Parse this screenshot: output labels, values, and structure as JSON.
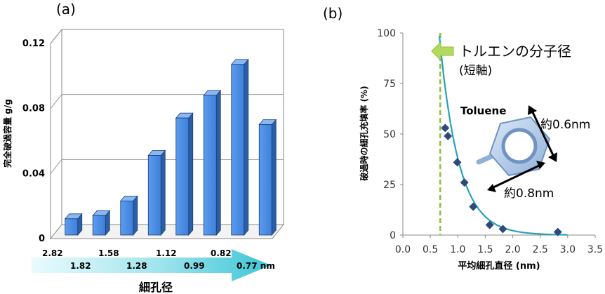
{
  "chart_data": [
    {
      "panel_label": "(a)",
      "type": "bar",
      "ylabel": "完全破過容量 g/g",
      "ylim": [
        0,
        0.12
      ],
      "yticks": [
        "0",
        "0.04",
        "0.08",
        "0.12"
      ],
      "categories": [
        "2.82",
        "1.82",
        "1.58",
        "1.28",
        "1.12",
        "0.99",
        "0.82",
        "0.77 nm"
      ],
      "values": [
        0.01,
        0.012,
        0.021,
        0.049,
        0.072,
        0.086,
        0.105,
        0.068
      ],
      "xlabel": "細孔径",
      "bar_color": "#4f8fe6"
    },
    {
      "panel_label": "(b)",
      "type": "scatter",
      "xlabel": "平均細孔直径 (nm)",
      "ylabel": "破過時の細孔充填率 (%)",
      "xlim": [
        0,
        3.5
      ],
      "ylim": [
        0,
        100
      ],
      "xticks": [
        "0.0",
        "0.5",
        "1.0",
        "1.5",
        "2.0",
        "2.5",
        "3.0",
        "3.5"
      ],
      "yticks": [
        "0",
        "25",
        "50",
        "75",
        "100"
      ],
      "points": [
        {
          "x": 0.77,
          "y": 53
        },
        {
          "x": 0.82,
          "y": 49
        },
        {
          "x": 0.99,
          "y": 36
        },
        {
          "x": 1.12,
          "y": 26
        },
        {
          "x": 1.28,
          "y": 14
        },
        {
          "x": 1.58,
          "y": 5
        },
        {
          "x": 1.82,
          "y": 3
        },
        {
          "x": 2.82,
          "y": 1.5
        }
      ],
      "reference_line_x": 0.68,
      "annotation_line1": "トルエンの分子径",
      "annotation_line2": "(短軸)",
      "molecule_name": "Toluene",
      "dim1": "約0.6nm",
      "dim2": "約0.8nm",
      "marker_color": "#2e4a7a",
      "curve_color": "#27a3b5",
      "dash_color": "#8fbf3a"
    }
  ]
}
